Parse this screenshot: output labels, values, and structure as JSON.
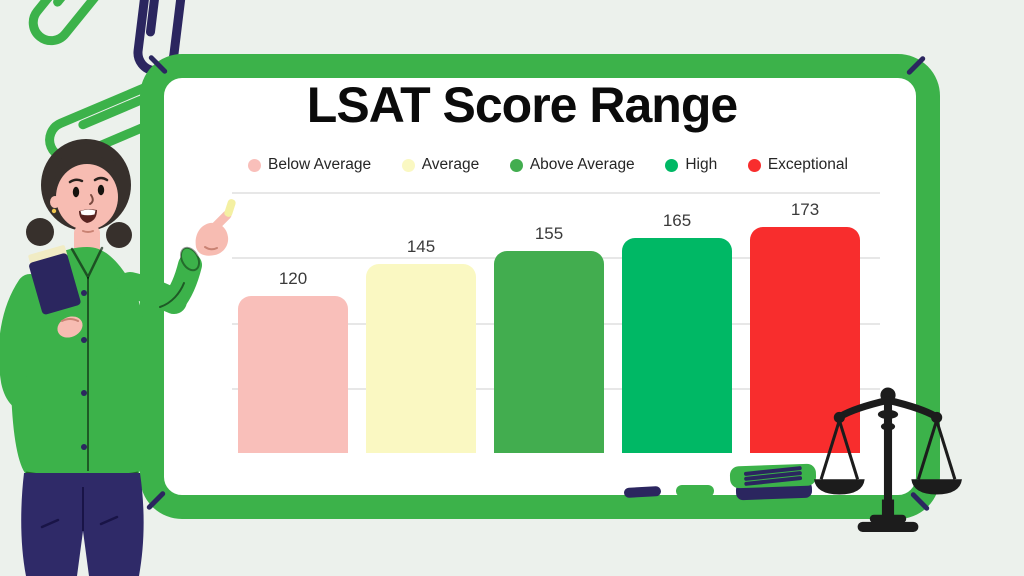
{
  "theme": {
    "bg": "#ecf1ec",
    "green": "#3cb24a",
    "navy": "#2b265f",
    "black": "#1c1c1c",
    "surface": "#ffffff",
    "gridline": "#e7e7e7",
    "titlecolor": "#0b0b0b",
    "legendtext": "#262626",
    "valuetext": "#3a3a3a",
    "skin": "#f7bcb2",
    "hair": "#37302c",
    "pants": "#2f2a68",
    "chalk": "#f4f0a2",
    "cream": "#f1ecc4",
    "mouth": "#572320"
  },
  "title": "LSAT Score Range",
  "chart_data": {
    "type": "bar",
    "title": "LSAT Score Range",
    "categories": [
      "Below Average",
      "Average",
      "Above Average",
      "High",
      "Exceptional"
    ],
    "values": [
      120,
      145,
      155,
      165,
      173
    ],
    "colors": [
      "#f9bfba",
      "#faf8c2",
      "#42ad4f",
      "#00b865",
      "#f82d2d"
    ],
    "xlabel": "",
    "ylabel": "",
    "ylim": [
      0,
      200
    ],
    "gridlines": [
      50,
      100,
      150,
      200
    ],
    "grid": true,
    "legend_position": "top",
    "value_labels_shown": true,
    "axis_labels_shown": false
  },
  "decorations": {
    "icons": [
      "paperclip-icon",
      "paperclip-icon",
      "paperclip-icon",
      "scales-of-justice-icon",
      "teacher-illustration",
      "book-stack",
      "eraser-pill",
      "chalk-piece"
    ]
  }
}
